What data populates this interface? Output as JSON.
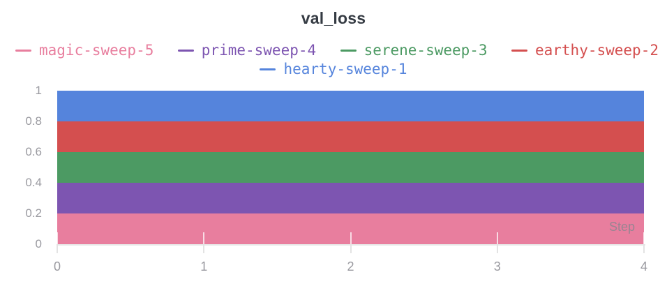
{
  "title": "val_loss",
  "legend_rows": [
    [
      "magic-sweep-5",
      "prime-sweep-4",
      "serene-sweep-3",
      "earthy-sweep-2"
    ],
    [
      "hearty-sweep-1"
    ]
  ],
  "chart_data": {
    "type": "area",
    "stacked": true,
    "title": "val_loss",
    "xlabel": "Step",
    "ylabel": "",
    "xlim": [
      0,
      4
    ],
    "ylim": [
      0,
      1
    ],
    "x_ticks": [
      0,
      1,
      2,
      3,
      4
    ],
    "y_ticks": [
      0,
      0.2,
      0.4,
      0.6,
      0.8,
      1
    ],
    "grid": false,
    "legend_position": "top",
    "series": [
      {
        "name": "magic-sweep-5",
        "color": "#E87E9E",
        "x": [
          0,
          4
        ],
        "band_bottom": 0.0,
        "band_top": 0.2
      },
      {
        "name": "prime-sweep-4",
        "color": "#7D55B1",
        "x": [
          0,
          4
        ],
        "band_bottom": 0.2,
        "band_top": 0.4
      },
      {
        "name": "serene-sweep-3",
        "color": "#4C9A63",
        "x": [
          0,
          4
        ],
        "band_bottom": 0.4,
        "band_top": 0.6
      },
      {
        "name": "earthy-sweep-2",
        "color": "#D44F4F",
        "x": [
          0,
          4
        ],
        "band_bottom": 0.6,
        "band_top": 0.8
      },
      {
        "name": "hearty-sweep-1",
        "color": "#5584DC",
        "x": [
          0,
          4
        ],
        "band_bottom": 0.8,
        "band_top": 1.0
      }
    ]
  }
}
